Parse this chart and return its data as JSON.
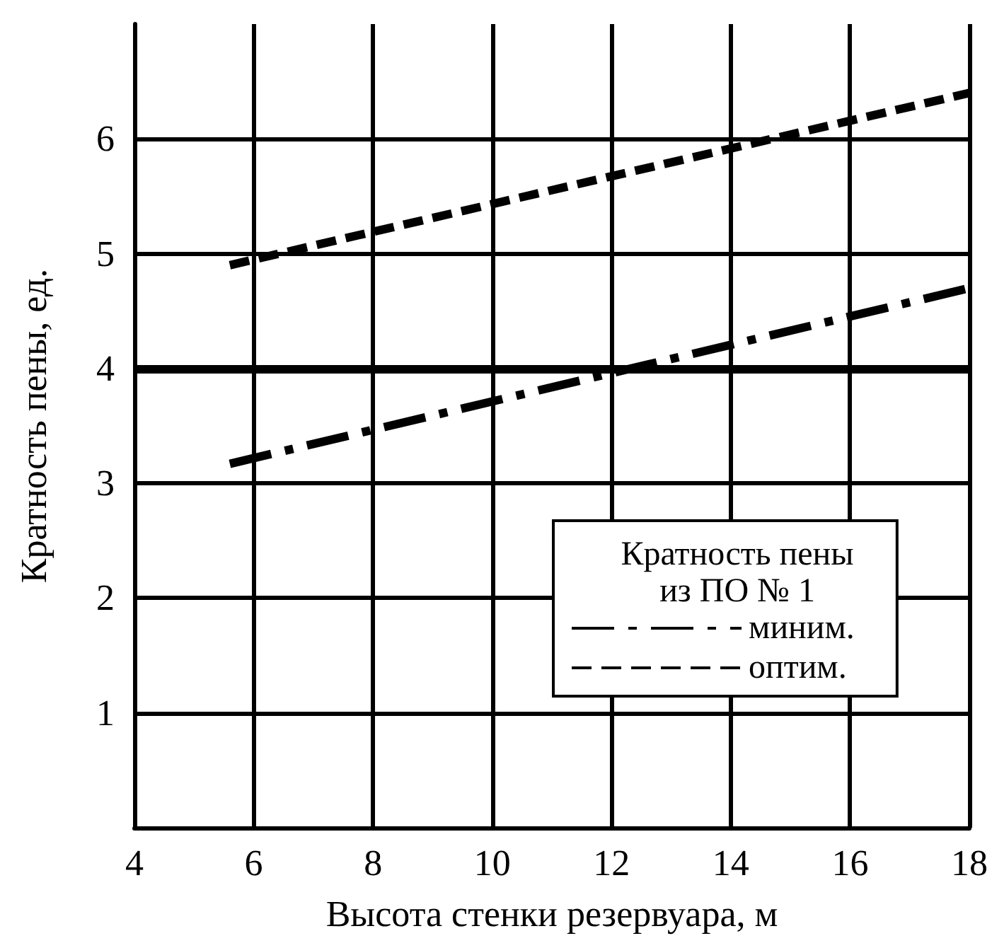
{
  "chart_data": {
    "type": "line",
    "xlabel": "Высота стенки резервуара, м",
    "ylabel": "Кратность пены, ед.",
    "legend_title": "Кратность пены\nиз ПО № 1",
    "xlim": [
      4,
      18
    ],
    "xticks": [
      4,
      6,
      8,
      10,
      12,
      14,
      16,
      18
    ],
    "ylim": [
      0,
      7
    ],
    "yticks": [
      1,
      2,
      3,
      4,
      5,
      6
    ],
    "x": [
      5.6,
      18
    ],
    "series": [
      {
        "name": "миним.",
        "color": "#000000",
        "line_style": "dashdot",
        "values": [
          3.17,
          4.7
        ]
      },
      {
        "name": "оптим.",
        "color": "#000000",
        "line_style": "dashed",
        "values": [
          4.9,
          6.4
        ]
      }
    ],
    "ref_lines": [
      {
        "axis": "y",
        "value": 4,
        "color": "#000000"
      }
    ],
    "grid": true,
    "legend": "bottom right",
    "marker": "none"
  }
}
